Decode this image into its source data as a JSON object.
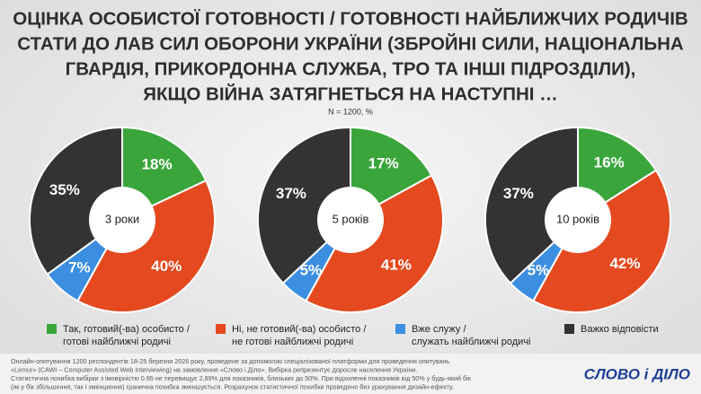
{
  "title": [
    "ОЦІНКА ОСОБИСТОЇ ГОТОВНОСТІ / ГОТОВНОСТІ НАЙБЛИЖЧИХ РОДИЧІВ",
    "СТАТИ ДО ЛАВ СИЛ ОБОРОНИ УКРАЇНИ (ЗБРОЙНІ СИЛИ, НАЦІОНАЛЬНА",
    "ГВАРДІЯ, ПРИКОРДОННА СЛУЖБА, ТРО ТА ІНШІ ПІДРОЗДІЛИ),",
    "ЯКЩО ВІЙНА ЗАТЯГНЕТЬСЯ НА НАСТУПНІ …"
  ],
  "subtitle": "N = 1200, %",
  "legend": [
    {
      "lines": [
        "Так, готовий(-ва) особисто /",
        "готові найближчі родичі"
      ],
      "color": "#3aa53b"
    },
    {
      "lines": [
        "Ні, не готовий(-ва) особисто /",
        "не готові найближчі родичі"
      ],
      "color": "#e4491f"
    },
    {
      "lines": [
        "Вже служу /",
        "служать найближчі родичі"
      ],
      "color": "#3b8ee0"
    },
    {
      "lines": [
        "Важко відповісти"
      ],
      "color": "#333333"
    }
  ],
  "chart_data": [
    {
      "type": "pie",
      "label": "3 роки",
      "values": [
        18,
        40,
        7,
        35
      ],
      "value_labels": [
        "18%",
        "40%",
        "7%",
        "35%"
      ]
    },
    {
      "type": "pie",
      "label": "5 років",
      "values": [
        17,
        41,
        5,
        37
      ],
      "value_labels": [
        "17%",
        "41%",
        "5%",
        "37%"
      ]
    },
    {
      "type": "pie",
      "label": "10 років",
      "values": [
        16,
        42,
        5,
        37
      ],
      "value_labels": [
        "16%",
        "42%",
        "5%",
        "37%"
      ]
    }
  ],
  "footnote": [
    "Онлайн-опитування 1200 респондентів 18-25 березня 2026 року, проведене за допомогою спеціалізованої платформи для проведення опитувань",
    "«Lemur» (CAWI – Computer Assisted Web Interviewing) на замовлення «Слово і Діло». Вибірка репрезентує доросле населення України.",
    "Статистична похибка вибірки з імовірністю 0.95 не перевищує 2,89% для показників, близьких до 50%. При відхиленні показників від 50% у будь-який бік",
    "(як у бік збільшення, так і зменшення) гранична похибка зменшується. Розрахунок статистичної похибки проведено без урахування дизайн-ефекту."
  ],
  "logo": "СЛОВО і ДІЛО"
}
